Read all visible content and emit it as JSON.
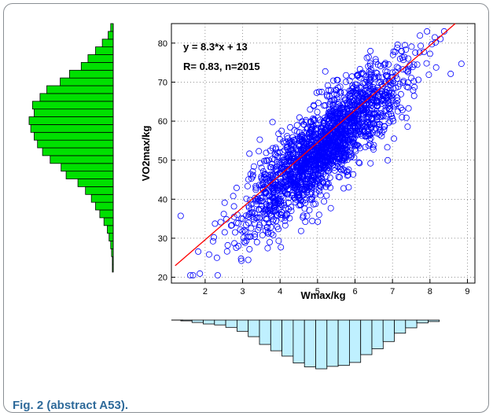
{
  "caption": "Fig. 2 (abstract A53).",
  "colors": {
    "points": "#0000ff",
    "fit_line": "#ff0000",
    "y_histogram": "#00e000",
    "x_histogram": "#bff0ff",
    "caption": "#2e6a9a"
  },
  "chart_data": [
    {
      "type": "scatter",
      "xlabel": "Wmax/kg",
      "ylabel": "VO2max/kg",
      "xlim": [
        1.1,
        9.2
      ],
      "ylim": [
        18.5,
        85
      ],
      "xticks": [
        2,
        3,
        4,
        5,
        6,
        7,
        8,
        9
      ],
      "yticks": [
        20,
        30,
        40,
        50,
        60,
        70,
        80
      ],
      "grid": true,
      "marker": "open-circle",
      "n": 2015,
      "annotations": [
        "y = 8.3*x + 13",
        "R= 0.83, n=2015"
      ],
      "fit": {
        "slope": 8.3,
        "intercept": 13
      },
      "correlation_r": 0.83
    },
    {
      "type": "bar",
      "orientation": "horizontal",
      "role": "marginal histogram of VO2max/kg",
      "bins": [
        21,
        23,
        25,
        27,
        29,
        31,
        33,
        35,
        37,
        39,
        41,
        43,
        45,
        47,
        49,
        51,
        53,
        55,
        57,
        59,
        61,
        63,
        65,
        67,
        69,
        71,
        73,
        75,
        77,
        79,
        81,
        83
      ],
      "counts": [
        1,
        1,
        2,
        3,
        5,
        7,
        11,
        16,
        21,
        26,
        33,
        42,
        56,
        62,
        75,
        84,
        90,
        94,
        98,
        100,
        94,
        96,
        87,
        79,
        63,
        52,
        38,
        30,
        21,
        13,
        6,
        3
      ]
    },
    {
      "type": "bar",
      "orientation": "vertical-downward",
      "role": "marginal histogram of Wmax/kg",
      "bins": [
        1.5,
        1.8,
        2.1,
        2.4,
        2.7,
        3.0,
        3.3,
        3.6,
        3.9,
        4.2,
        4.5,
        4.8,
        5.1,
        5.4,
        5.7,
        6.0,
        6.3,
        6.6,
        6.9,
        7.2,
        7.5,
        7.8,
        8.1
      ],
      "counts": [
        1,
        5,
        8,
        10,
        15,
        23,
        34,
        50,
        63,
        74,
        88,
        96,
        100,
        95,
        93,
        87,
        71,
        59,
        44,
        27,
        16,
        6,
        3
      ]
    }
  ]
}
